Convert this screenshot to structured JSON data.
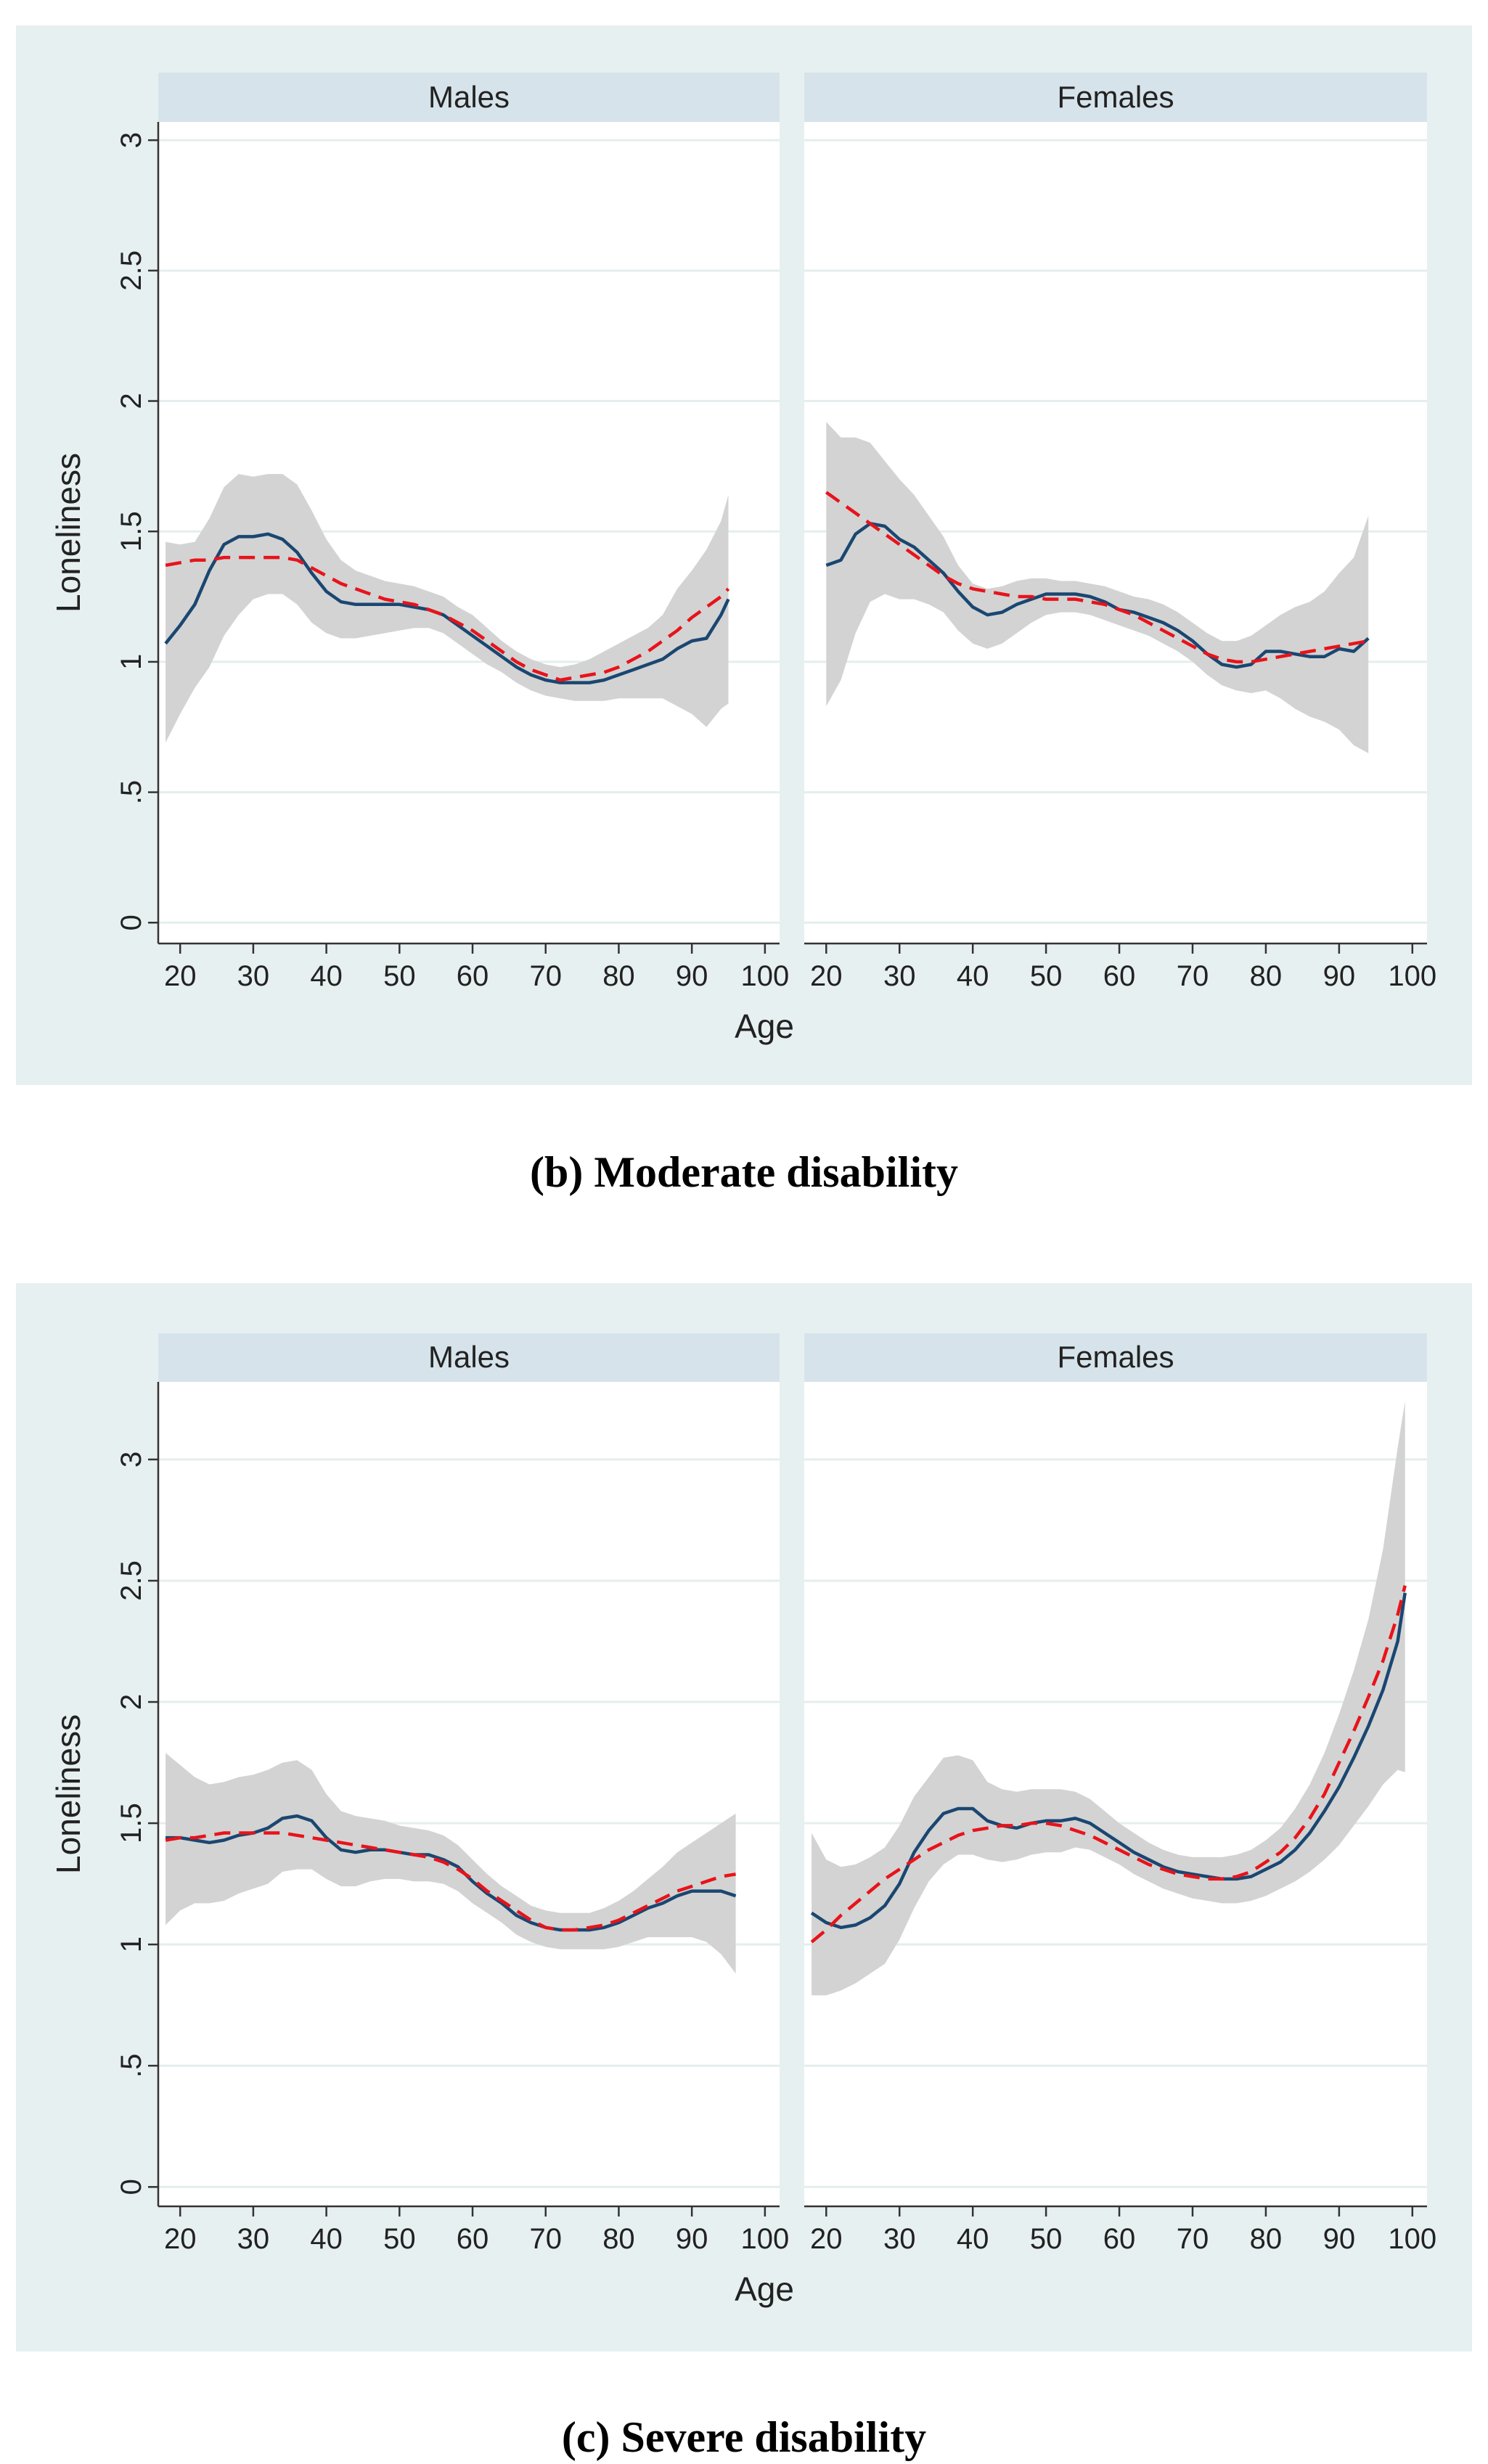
{
  "chart_data": [
    {
      "type": "line",
      "caption": {
        "label": "(b)",
        "text": " Moderate disability"
      },
      "xlabel": "Age",
      "ylabel": "Loneliness",
      "xlim": [
        17,
        102
      ],
      "ylim": [
        -0.08,
        3.07
      ],
      "xticks": [
        "20",
        "30",
        "40",
        "50",
        "60",
        "70",
        "80",
        "90",
        "100"
      ],
      "yticks": [
        "0",
        ".5",
        "1",
        "1.5",
        "2",
        "2.5",
        "3"
      ],
      "panels": [
        {
          "title": "Males",
          "x": [
            18,
            20,
            22,
            24,
            26,
            28,
            30,
            32,
            34,
            36,
            38,
            40,
            42,
            44,
            46,
            48,
            50,
            52,
            54,
            56,
            58,
            60,
            62,
            64,
            66,
            68,
            70,
            72,
            74,
            76,
            78,
            80,
            82,
            84,
            86,
            88,
            90,
            92,
            94,
            95
          ],
          "smooth": [
            1.07,
            1.14,
            1.22,
            1.35,
            1.45,
            1.48,
            1.48,
            1.49,
            1.47,
            1.42,
            1.34,
            1.27,
            1.23,
            1.22,
            1.22,
            1.22,
            1.22,
            1.21,
            1.2,
            1.18,
            1.14,
            1.1,
            1.06,
            1.02,
            0.98,
            0.95,
            0.93,
            0.92,
            0.92,
            0.92,
            0.93,
            0.95,
            0.97,
            0.99,
            1.01,
            1.05,
            1.08,
            1.09,
            1.18,
            1.24
          ],
          "fit": [
            1.37,
            1.38,
            1.39,
            1.39,
            1.4,
            1.4,
            1.4,
            1.4,
            1.4,
            1.39,
            1.36,
            1.33,
            1.3,
            1.28,
            1.26,
            1.24,
            1.23,
            1.22,
            1.2,
            1.18,
            1.15,
            1.12,
            1.08,
            1.04,
            1.0,
            0.97,
            0.95,
            0.93,
            0.94,
            0.95,
            0.96,
            0.98,
            1.01,
            1.04,
            1.08,
            1.12,
            1.17,
            1.21,
            1.25,
            1.28
          ],
          "upper": [
            1.46,
            1.45,
            1.46,
            1.55,
            1.67,
            1.72,
            1.71,
            1.72,
            1.72,
            1.68,
            1.58,
            1.47,
            1.39,
            1.35,
            1.33,
            1.31,
            1.3,
            1.29,
            1.27,
            1.25,
            1.21,
            1.18,
            1.13,
            1.08,
            1.04,
            1.01,
            0.99,
            0.98,
            0.99,
            1.01,
            1.04,
            1.07,
            1.1,
            1.13,
            1.18,
            1.28,
            1.35,
            1.43,
            1.54,
            1.64
          ],
          "lower": [
            0.69,
            0.8,
            0.9,
            0.98,
            1.1,
            1.18,
            1.24,
            1.26,
            1.26,
            1.22,
            1.15,
            1.11,
            1.09,
            1.09,
            1.1,
            1.11,
            1.12,
            1.13,
            1.13,
            1.11,
            1.07,
            1.03,
            0.99,
            0.96,
            0.92,
            0.89,
            0.87,
            0.86,
            0.85,
            0.85,
            0.85,
            0.86,
            0.86,
            0.86,
            0.86,
            0.83,
            0.8,
            0.75,
            0.82,
            0.84
          ]
        },
        {
          "title": "Females",
          "x": [
            20,
            22,
            24,
            26,
            28,
            30,
            32,
            34,
            36,
            38,
            40,
            42,
            44,
            46,
            48,
            50,
            52,
            54,
            56,
            58,
            60,
            62,
            64,
            66,
            68,
            70,
            72,
            74,
            76,
            78,
            80,
            82,
            84,
            86,
            88,
            90,
            92,
            94
          ],
          "smooth": [
            1.37,
            1.39,
            1.49,
            1.53,
            1.52,
            1.47,
            1.44,
            1.39,
            1.34,
            1.27,
            1.21,
            1.18,
            1.19,
            1.22,
            1.24,
            1.26,
            1.26,
            1.26,
            1.25,
            1.23,
            1.2,
            1.19,
            1.17,
            1.15,
            1.12,
            1.08,
            1.03,
            0.99,
            0.98,
            0.99,
            1.04,
            1.04,
            1.03,
            1.02,
            1.02,
            1.05,
            1.04,
            1.09
          ],
          "fit": [
            1.65,
            1.61,
            1.57,
            1.53,
            1.49,
            1.45,
            1.41,
            1.37,
            1.33,
            1.3,
            1.28,
            1.27,
            1.26,
            1.25,
            1.25,
            1.24,
            1.24,
            1.24,
            1.23,
            1.22,
            1.2,
            1.18,
            1.15,
            1.12,
            1.09,
            1.06,
            1.03,
            1.01,
            1.0,
            1.0,
            1.01,
            1.02,
            1.03,
            1.04,
            1.05,
            1.06,
            1.07,
            1.08
          ],
          "upper": [
            1.92,
            1.86,
            1.86,
            1.84,
            1.77,
            1.7,
            1.64,
            1.56,
            1.48,
            1.37,
            1.3,
            1.28,
            1.29,
            1.31,
            1.32,
            1.32,
            1.31,
            1.31,
            1.3,
            1.29,
            1.27,
            1.25,
            1.24,
            1.22,
            1.19,
            1.15,
            1.11,
            1.08,
            1.08,
            1.1,
            1.14,
            1.18,
            1.21,
            1.23,
            1.27,
            1.34,
            1.4,
            1.56
          ],
          "lower": [
            0.83,
            0.93,
            1.11,
            1.23,
            1.26,
            1.24,
            1.24,
            1.22,
            1.19,
            1.12,
            1.07,
            1.05,
            1.07,
            1.11,
            1.15,
            1.18,
            1.19,
            1.19,
            1.18,
            1.16,
            1.14,
            1.12,
            1.1,
            1.07,
            1.04,
            1.0,
            0.95,
            0.91,
            0.89,
            0.88,
            0.89,
            0.86,
            0.82,
            0.79,
            0.77,
            0.74,
            0.68,
            0.65
          ]
        }
      ]
    },
    {
      "type": "line",
      "caption": {
        "label": "(c)",
        "text": " Severe disability"
      },
      "xlabel": "Age",
      "ylabel": "Loneliness",
      "xlim": [
        17,
        102
      ],
      "ylim": [
        -0.08,
        3.32
      ],
      "xticks": [
        "20",
        "30",
        "40",
        "50",
        "60",
        "70",
        "80",
        "90",
        "100"
      ],
      "yticks": [
        "0",
        ".5",
        "1",
        "1.5",
        "2",
        "2.5",
        "3"
      ],
      "panels": [
        {
          "title": "Males",
          "x": [
            18,
            20,
            22,
            24,
            26,
            28,
            30,
            32,
            34,
            36,
            38,
            40,
            42,
            44,
            46,
            48,
            50,
            52,
            54,
            56,
            58,
            60,
            62,
            64,
            66,
            68,
            70,
            72,
            74,
            76,
            78,
            80,
            82,
            84,
            86,
            88,
            90,
            92,
            94,
            96
          ],
          "smooth": [
            1.44,
            1.44,
            1.43,
            1.42,
            1.43,
            1.45,
            1.46,
            1.48,
            1.52,
            1.53,
            1.51,
            1.44,
            1.39,
            1.38,
            1.39,
            1.39,
            1.38,
            1.37,
            1.37,
            1.35,
            1.32,
            1.26,
            1.21,
            1.17,
            1.12,
            1.09,
            1.07,
            1.06,
            1.06,
            1.06,
            1.07,
            1.09,
            1.12,
            1.15,
            1.17,
            1.2,
            1.22,
            1.22,
            1.22,
            1.2
          ],
          "fit": [
            1.43,
            1.44,
            1.44,
            1.45,
            1.46,
            1.46,
            1.46,
            1.46,
            1.46,
            1.45,
            1.44,
            1.43,
            1.42,
            1.41,
            1.4,
            1.39,
            1.38,
            1.37,
            1.36,
            1.34,
            1.31,
            1.27,
            1.22,
            1.18,
            1.14,
            1.1,
            1.07,
            1.06,
            1.06,
            1.07,
            1.08,
            1.1,
            1.13,
            1.16,
            1.19,
            1.22,
            1.24,
            1.26,
            1.28,
            1.29
          ],
          "upper": [
            1.79,
            1.74,
            1.69,
            1.66,
            1.67,
            1.69,
            1.7,
            1.72,
            1.75,
            1.76,
            1.72,
            1.62,
            1.55,
            1.53,
            1.52,
            1.51,
            1.49,
            1.48,
            1.47,
            1.45,
            1.41,
            1.35,
            1.29,
            1.24,
            1.2,
            1.16,
            1.14,
            1.13,
            1.13,
            1.13,
            1.15,
            1.18,
            1.22,
            1.27,
            1.32,
            1.38,
            1.42,
            1.46,
            1.5,
            1.54
          ],
          "lower": [
            1.08,
            1.14,
            1.17,
            1.17,
            1.18,
            1.21,
            1.23,
            1.25,
            1.3,
            1.31,
            1.31,
            1.27,
            1.24,
            1.24,
            1.26,
            1.27,
            1.27,
            1.26,
            1.26,
            1.25,
            1.22,
            1.17,
            1.13,
            1.09,
            1.04,
            1.01,
            0.99,
            0.98,
            0.98,
            0.98,
            0.98,
            0.99,
            1.01,
            1.03,
            1.03,
            1.03,
            1.03,
            1.01,
            0.96,
            0.88
          ]
        },
        {
          "title": "Females",
          "x": [
            18,
            20,
            22,
            24,
            26,
            28,
            30,
            32,
            34,
            36,
            38,
            40,
            42,
            44,
            46,
            48,
            50,
            52,
            54,
            56,
            58,
            60,
            62,
            64,
            66,
            68,
            70,
            72,
            74,
            76,
            78,
            80,
            82,
            84,
            86,
            88,
            90,
            92,
            94,
            96,
            98,
            99
          ],
          "smooth": [
            1.13,
            1.09,
            1.07,
            1.08,
            1.11,
            1.16,
            1.25,
            1.38,
            1.47,
            1.54,
            1.56,
            1.56,
            1.51,
            1.49,
            1.48,
            1.5,
            1.51,
            1.51,
            1.52,
            1.5,
            1.46,
            1.42,
            1.38,
            1.35,
            1.32,
            1.3,
            1.29,
            1.28,
            1.27,
            1.27,
            1.28,
            1.31,
            1.34,
            1.39,
            1.46,
            1.55,
            1.65,
            1.77,
            1.9,
            2.05,
            2.25,
            2.45
          ],
          "fit": [
            1.01,
            1.06,
            1.12,
            1.17,
            1.22,
            1.27,
            1.31,
            1.35,
            1.39,
            1.42,
            1.45,
            1.47,
            1.48,
            1.49,
            1.49,
            1.5,
            1.5,
            1.49,
            1.47,
            1.45,
            1.42,
            1.39,
            1.36,
            1.33,
            1.31,
            1.29,
            1.28,
            1.27,
            1.27,
            1.28,
            1.3,
            1.34,
            1.38,
            1.44,
            1.52,
            1.62,
            1.75,
            1.88,
            2.02,
            2.17,
            2.36,
            2.48
          ],
          "upper": [
            1.46,
            1.35,
            1.32,
            1.33,
            1.36,
            1.4,
            1.49,
            1.61,
            1.69,
            1.77,
            1.78,
            1.76,
            1.67,
            1.64,
            1.63,
            1.64,
            1.64,
            1.64,
            1.63,
            1.6,
            1.55,
            1.5,
            1.46,
            1.42,
            1.39,
            1.37,
            1.36,
            1.36,
            1.36,
            1.37,
            1.39,
            1.43,
            1.48,
            1.56,
            1.66,
            1.79,
            1.95,
            2.13,
            2.34,
            2.63,
            3.05,
            3.24
          ],
          "lower": [
            0.79,
            0.79,
            0.81,
            0.84,
            0.88,
            0.92,
            1.02,
            1.15,
            1.26,
            1.33,
            1.37,
            1.37,
            1.35,
            1.34,
            1.35,
            1.37,
            1.38,
            1.38,
            1.4,
            1.39,
            1.36,
            1.33,
            1.29,
            1.26,
            1.23,
            1.21,
            1.19,
            1.18,
            1.17,
            1.17,
            1.18,
            1.2,
            1.23,
            1.26,
            1.3,
            1.35,
            1.41,
            1.49,
            1.57,
            1.66,
            1.72,
            1.71
          ]
        }
      ]
    }
  ]
}
